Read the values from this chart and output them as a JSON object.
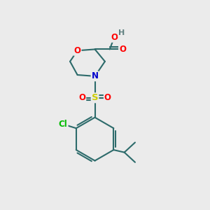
{
  "bg_color": "#ebebeb",
  "bond_color": "#2d6b6b",
  "bond_width": 1.5,
  "atom_colors": {
    "O": "#ff0000",
    "N": "#0000cc",
    "S": "#cccc00",
    "Cl": "#00bb00",
    "C": "#2d6b6b",
    "H": "#608080"
  },
  "font_size": 8.5,
  "fig_size": [
    3.0,
    3.0
  ],
  "dpi": 100
}
